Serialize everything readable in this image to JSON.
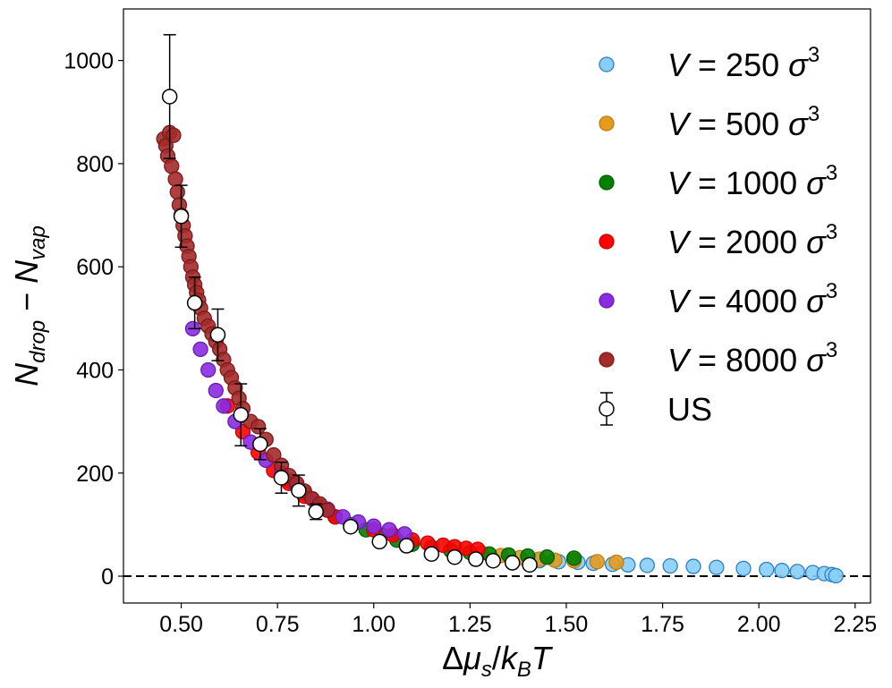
{
  "chart_data": {
    "type": "scatter",
    "title": "",
    "xlabel": "Δμ_s/k_B T",
    "ylabel": "N_drop − N_vap",
    "xlim": [
      0.35,
      2.29
    ],
    "ylim": [
      -52,
      1100
    ],
    "xticks": [
      "0.50",
      "0.75",
      "1.00",
      "1.25",
      "1.50",
      "1.75",
      "2.00",
      "2.25"
    ],
    "yticks": [
      "0",
      "200",
      "400",
      "600",
      "800",
      "1000"
    ],
    "reference_line": {
      "y": 0,
      "style": "dashed"
    },
    "legend_position": "upper-right",
    "series": [
      {
        "name": "V = 250 σ³",
        "volume": "250",
        "color": "#87CEFA",
        "edge": "#2f7fc0",
        "points": [
          [
            1.43,
            30
          ],
          [
            1.48,
            28
          ],
          [
            1.53,
            27
          ],
          [
            1.57,
            25
          ],
          [
            1.62,
            23
          ],
          [
            1.66,
            22
          ],
          [
            1.71,
            21
          ],
          [
            1.77,
            20
          ],
          [
            1.83,
            19
          ],
          [
            1.89,
            17
          ],
          [
            1.96,
            15
          ],
          [
            2.02,
            13
          ],
          [
            2.06,
            11
          ],
          [
            2.1,
            9
          ],
          [
            2.14,
            7
          ],
          [
            2.17,
            5
          ],
          [
            2.19,
            3
          ],
          [
            2.2,
            1
          ]
        ]
      },
      {
        "name": "V = 500 σ³",
        "volume": "500",
        "color": "#E49B20",
        "edge": "#c07a10",
        "points": [
          [
            1.28,
            45
          ],
          [
            1.33,
            40
          ],
          [
            1.38,
            36
          ],
          [
            1.43,
            33
          ],
          [
            1.47,
            31
          ],
          [
            1.52,
            30
          ],
          [
            1.58,
            28
          ],
          [
            1.63,
            27
          ]
        ]
      },
      {
        "name": "V = 1000 σ³",
        "volume": "1000",
        "color": "#008000",
        "edge": "#006000",
        "points": [
          [
            0.78,
            185
          ],
          [
            0.82,
            160
          ],
          [
            0.86,
            135
          ],
          [
            0.9,
            115
          ],
          [
            0.94,
            100
          ],
          [
            0.98,
            90
          ],
          [
            1.02,
            80
          ],
          [
            1.06,
            70
          ],
          [
            1.1,
            62
          ],
          [
            1.15,
            56
          ],
          [
            1.2,
            50
          ],
          [
            1.25,
            46
          ],
          [
            1.3,
            43
          ],
          [
            1.35,
            41
          ],
          [
            1.4,
            39
          ],
          [
            1.45,
            37
          ],
          [
            1.52,
            35
          ]
        ]
      },
      {
        "name": "V = 2000 σ³",
        "volume": "2000",
        "color": "#FF0000",
        "edge": "#cc0000",
        "points": [
          [
            0.62,
            330
          ],
          [
            0.66,
            280
          ],
          [
            0.7,
            240
          ],
          [
            0.74,
            205
          ],
          [
            0.78,
            180
          ],
          [
            0.82,
            155
          ],
          [
            0.86,
            135
          ],
          [
            0.9,
            115
          ],
          [
            1.0,
            90
          ],
          [
            1.05,
            80
          ],
          [
            1.1,
            70
          ],
          [
            1.14,
            64
          ],
          [
            1.18,
            60
          ],
          [
            1.21,
            57
          ],
          [
            1.24,
            54
          ],
          [
            1.27,
            52
          ]
        ]
      },
      {
        "name": "V = 4000 σ³",
        "volume": "4000",
        "color": "#8A2BE2",
        "edge": "#6a1bb2",
        "points": [
          [
            0.53,
            480
          ],
          [
            0.55,
            440
          ],
          [
            0.57,
            400
          ],
          [
            0.59,
            360
          ],
          [
            0.61,
            330
          ],
          [
            0.64,
            300
          ],
          [
            0.68,
            260
          ],
          [
            0.72,
            225
          ],
          [
            0.76,
            200
          ],
          [
            0.8,
            175
          ],
          [
            0.84,
            150
          ],
          [
            0.88,
            130
          ],
          [
            0.92,
            115
          ],
          [
            0.96,
            105
          ],
          [
            1.0,
            97
          ],
          [
            1.04,
            90
          ],
          [
            1.08,
            82
          ]
        ]
      },
      {
        "name": "V = 8000 σ³",
        "volume": "8000",
        "color": "#A52A2A",
        "edge": "#7a1a1a",
        "points": [
          [
            0.455,
            848
          ],
          [
            0.46,
            835
          ],
          [
            0.465,
            815
          ],
          [
            0.47,
            860
          ],
          [
            0.475,
            795
          ],
          [
            0.48,
            855
          ],
          [
            0.485,
            770
          ],
          [
            0.49,
            745
          ],
          [
            0.495,
            720
          ],
          [
            0.5,
            700
          ],
          [
            0.505,
            680
          ],
          [
            0.51,
            660
          ],
          [
            0.515,
            640
          ],
          [
            0.52,
            620
          ],
          [
            0.525,
            600
          ],
          [
            0.53,
            580
          ],
          [
            0.535,
            565
          ],
          [
            0.54,
            550
          ],
          [
            0.545,
            535
          ],
          [
            0.55,
            520
          ],
          [
            0.56,
            500
          ],
          [
            0.57,
            485
          ],
          [
            0.58,
            470
          ],
          [
            0.59,
            455
          ],
          [
            0.6,
            440
          ],
          [
            0.61,
            420
          ],
          [
            0.62,
            400
          ],
          [
            0.63,
            385
          ],
          [
            0.64,
            365
          ],
          [
            0.65,
            345
          ],
          [
            0.66,
            325
          ],
          [
            0.68,
            300
          ],
          [
            0.7,
            290
          ],
          [
            0.72,
            265
          ],
          [
            0.74,
            235
          ],
          [
            0.76,
            215
          ],
          [
            0.78,
            195
          ],
          [
            0.8,
            180
          ],
          [
            0.82,
            165
          ],
          [
            0.84,
            150
          ],
          [
            0.86,
            140
          ],
          [
            0.88,
            128
          ]
        ]
      }
    ],
    "us_series": {
      "name": "US",
      "points": [
        {
          "x": 0.47,
          "y": 930,
          "err": 120
        },
        {
          "x": 0.5,
          "y": 698,
          "err": 60
        },
        {
          "x": 0.535,
          "y": 530,
          "err": 50
        },
        {
          "x": 0.595,
          "y": 468,
          "err": 50
        },
        {
          "x": 0.655,
          "y": 313,
          "err": 60
        },
        {
          "x": 0.705,
          "y": 256,
          "err": 30
        },
        {
          "x": 0.76,
          "y": 191,
          "err": 30
        },
        {
          "x": 0.805,
          "y": 166,
          "err": 30
        },
        {
          "x": 0.85,
          "y": 125,
          "err": 15
        },
        {
          "x": 0.94,
          "y": 96,
          "err": 0
        },
        {
          "x": 1.015,
          "y": 67,
          "err": 0
        },
        {
          "x": 1.085,
          "y": 59,
          "err": 0
        },
        {
          "x": 1.15,
          "y": 43,
          "err": 0
        },
        {
          "x": 1.21,
          "y": 37,
          "err": 0
        },
        {
          "x": 1.265,
          "y": 33,
          "err": 0
        },
        {
          "x": 1.31,
          "y": 30,
          "err": 0
        },
        {
          "x": 1.36,
          "y": 26,
          "err": 0
        },
        {
          "x": 1.405,
          "y": 22,
          "err": 0
        }
      ]
    }
  }
}
